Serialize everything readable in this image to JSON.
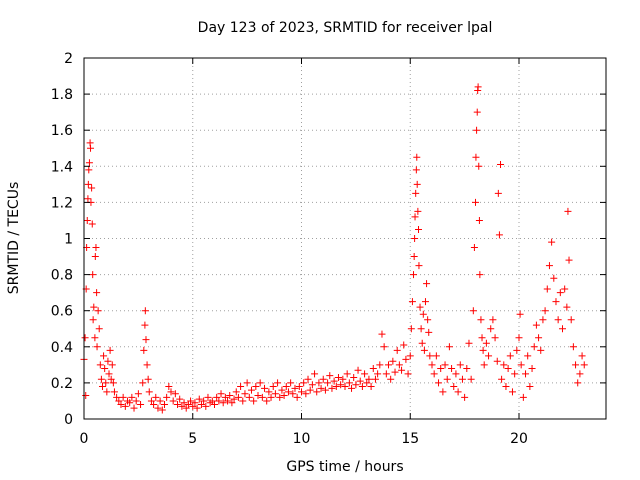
{
  "chart_data": {
    "type": "scatter",
    "title": "Day 123 of 2023, SRMTID for receiver lpal",
    "xlabel": "GPS time / hours",
    "ylabel": "SRMTID / TECUs",
    "xlim": [
      0,
      24
    ],
    "ylim": [
      0,
      2
    ],
    "xticks": [
      0,
      5,
      10,
      15,
      20
    ],
    "yticks": [
      0,
      0.2,
      0.4,
      0.6,
      0.8,
      1,
      1.2,
      1.4,
      1.6,
      1.8,
      2
    ],
    "xtick_labels": [
      "0",
      "5",
      "10",
      "15",
      "20"
    ],
    "ytick_labels": [
      "0",
      "0.2",
      "0.4",
      "0.6",
      "0.8",
      "1",
      "1.2",
      "1.4",
      "1.6",
      "1.8",
      "2"
    ],
    "grid": true,
    "marker": "+",
    "color": "#ff0000",
    "series": [
      {
        "name": "SRMTID",
        "points": [
          [
            0.0,
            0.33
          ],
          [
            0.05,
            0.45
          ],
          [
            0.08,
            0.13
          ],
          [
            0.1,
            0.72
          ],
          [
            0.12,
            0.95
          ],
          [
            0.15,
            1.1
          ],
          [
            0.18,
            1.22
          ],
          [
            0.2,
            1.3
          ],
          [
            0.22,
            1.38
          ],
          [
            0.25,
            1.42
          ],
          [
            0.28,
            1.53
          ],
          [
            0.3,
            1.5
          ],
          [
            0.32,
            1.2
          ],
          [
            0.35,
            1.28
          ],
          [
            0.38,
            1.08
          ],
          [
            0.4,
            0.8
          ],
          [
            0.42,
            0.55
          ],
          [
            0.45,
            0.62
          ],
          [
            0.5,
            0.45
          ],
          [
            0.52,
            0.9
          ],
          [
            0.55,
            0.95
          ],
          [
            0.58,
            0.7
          ],
          [
            0.6,
            0.4
          ],
          [
            0.65,
            0.6
          ],
          [
            0.7,
            0.5
          ],
          [
            0.75,
            0.3
          ],
          [
            0.8,
            0.22
          ],
          [
            0.85,
            0.18
          ],
          [
            0.9,
            0.35
          ],
          [
            0.95,
            0.28
          ],
          [
            1.0,
            0.2
          ],
          [
            1.05,
            0.15
          ],
          [
            1.1,
            0.32
          ],
          [
            1.15,
            0.25
          ],
          [
            1.2,
            0.38
          ],
          [
            1.25,
            0.22
          ],
          [
            1.3,
            0.3
          ],
          [
            1.35,
            0.2
          ],
          [
            1.4,
            0.15
          ],
          [
            1.5,
            0.12
          ],
          [
            1.6,
            0.1
          ],
          [
            1.7,
            0.08
          ],
          [
            1.8,
            0.12
          ],
          [
            1.9,
            0.07
          ],
          [
            2.0,
            0.1
          ],
          [
            2.1,
            0.09
          ],
          [
            2.2,
            0.12
          ],
          [
            2.3,
            0.06
          ],
          [
            2.4,
            0.1
          ],
          [
            2.5,
            0.14
          ],
          [
            2.6,
            0.08
          ],
          [
            2.7,
            0.2
          ],
          [
            2.75,
            0.38
          ],
          [
            2.8,
            0.52
          ],
          [
            2.82,
            0.6
          ],
          [
            2.85,
            0.44
          ],
          [
            2.9,
            0.3
          ],
          [
            2.95,
            0.22
          ],
          [
            3.0,
            0.15
          ],
          [
            3.1,
            0.1
          ],
          [
            3.2,
            0.08
          ],
          [
            3.3,
            0.12
          ],
          [
            3.4,
            0.06
          ],
          [
            3.5,
            0.1
          ],
          [
            3.6,
            0.05
          ],
          [
            3.7,
            0.08
          ],
          [
            3.8,
            0.12
          ],
          [
            3.9,
            0.18
          ],
          [
            4.0,
            0.15
          ],
          [
            4.1,
            0.1
          ],
          [
            4.2,
            0.14
          ],
          [
            4.3,
            0.08
          ],
          [
            4.4,
            0.11
          ],
          [
            4.5,
            0.07
          ],
          [
            4.6,
            0.09
          ],
          [
            4.7,
            0.06
          ],
          [
            4.8,
            0.08
          ],
          [
            4.9,
            0.1
          ],
          [
            5.0,
            0.07
          ],
          [
            5.1,
            0.09
          ],
          [
            5.2,
            0.06
          ],
          [
            5.3,
            0.11
          ],
          [
            5.4,
            0.08
          ],
          [
            5.5,
            0.1
          ],
          [
            5.6,
            0.07
          ],
          [
            5.7,
            0.12
          ],
          [
            5.8,
            0.09
          ],
          [
            5.9,
            0.1
          ],
          [
            6.0,
            0.08
          ],
          [
            6.1,
            0.12
          ],
          [
            6.2,
            0.1
          ],
          [
            6.3,
            0.14
          ],
          [
            6.4,
            0.09
          ],
          [
            6.5,
            0.12
          ],
          [
            6.6,
            0.1
          ],
          [
            6.7,
            0.13
          ],
          [
            6.8,
            0.09
          ],
          [
            6.9,
            0.11
          ],
          [
            7.0,
            0.15
          ],
          [
            7.1,
            0.12
          ],
          [
            7.2,
            0.18
          ],
          [
            7.3,
            0.1
          ],
          [
            7.4,
            0.14
          ],
          [
            7.5,
            0.2
          ],
          [
            7.6,
            0.12
          ],
          [
            7.7,
            0.16
          ],
          [
            7.8,
            0.1
          ],
          [
            7.9,
            0.18
          ],
          [
            8.0,
            0.13
          ],
          [
            8.1,
            0.2
          ],
          [
            8.2,
            0.12
          ],
          [
            8.3,
            0.17
          ],
          [
            8.4,
            0.1
          ],
          [
            8.5,
            0.15
          ],
          [
            8.6,
            0.12
          ],
          [
            8.7,
            0.18
          ],
          [
            8.8,
            0.14
          ],
          [
            8.9,
            0.2
          ],
          [
            9.0,
            0.12
          ],
          [
            9.1,
            0.16
          ],
          [
            9.2,
            0.13
          ],
          [
            9.3,
            0.18
          ],
          [
            9.4,
            0.15
          ],
          [
            9.5,
            0.2
          ],
          [
            9.6,
            0.14
          ],
          [
            9.7,
            0.17
          ],
          [
            9.8,
            0.12
          ],
          [
            9.9,
            0.18
          ],
          [
            10.0,
            0.15
          ],
          [
            10.1,
            0.2
          ],
          [
            10.2,
            0.14
          ],
          [
            10.3,
            0.22
          ],
          [
            10.4,
            0.16
          ],
          [
            10.5,
            0.19
          ],
          [
            10.6,
            0.25
          ],
          [
            10.7,
            0.15
          ],
          [
            10.8,
            0.2
          ],
          [
            10.9,
            0.17
          ],
          [
            11.0,
            0.22
          ],
          [
            11.1,
            0.16
          ],
          [
            11.2,
            0.2
          ],
          [
            11.3,
            0.24
          ],
          [
            11.4,
            0.17
          ],
          [
            11.5,
            0.21
          ],
          [
            11.6,
            0.18
          ],
          [
            11.7,
            0.23
          ],
          [
            11.8,
            0.19
          ],
          [
            11.9,
            0.22
          ],
          [
            12.0,
            0.18
          ],
          [
            12.1,
            0.25
          ],
          [
            12.2,
            0.2
          ],
          [
            12.3,
            0.17
          ],
          [
            12.4,
            0.23
          ],
          [
            12.5,
            0.19
          ],
          [
            12.6,
            0.27
          ],
          [
            12.7,
            0.21
          ],
          [
            12.8,
            0.18
          ],
          [
            12.9,
            0.25
          ],
          [
            13.0,
            0.2
          ],
          [
            13.1,
            0.22
          ],
          [
            13.2,
            0.18
          ],
          [
            13.3,
            0.28
          ],
          [
            13.4,
            0.22
          ],
          [
            13.5,
            0.25
          ],
          [
            13.6,
            0.3
          ],
          [
            13.7,
            0.47
          ],
          [
            13.8,
            0.4
          ],
          [
            13.9,
            0.25
          ],
          [
            14.0,
            0.3
          ],
          [
            14.1,
            0.22
          ],
          [
            14.2,
            0.32
          ],
          [
            14.3,
            0.26
          ],
          [
            14.4,
            0.38
          ],
          [
            14.5,
            0.3
          ],
          [
            14.6,
            0.27
          ],
          [
            14.7,
            0.41
          ],
          [
            14.8,
            0.33
          ],
          [
            14.9,
            0.25
          ],
          [
            15.0,
            0.35
          ],
          [
            15.05,
            0.5
          ],
          [
            15.1,
            0.65
          ],
          [
            15.15,
            0.8
          ],
          [
            15.18,
            0.9
          ],
          [
            15.2,
            1.0
          ],
          [
            15.22,
            1.12
          ],
          [
            15.25,
            1.25
          ],
          [
            15.28,
            1.38
          ],
          [
            15.3,
            1.45
          ],
          [
            15.32,
            1.3
          ],
          [
            15.35,
            1.15
          ],
          [
            15.38,
            1.05
          ],
          [
            15.4,
            0.85
          ],
          [
            15.45,
            0.62
          ],
          [
            15.5,
            0.5
          ],
          [
            15.55,
            0.42
          ],
          [
            15.6,
            0.58
          ],
          [
            15.65,
            0.38
          ],
          [
            15.7,
            0.65
          ],
          [
            15.75,
            0.75
          ],
          [
            15.8,
            0.55
          ],
          [
            15.85,
            0.48
          ],
          [
            15.9,
            0.35
          ],
          [
            16.0,
            0.3
          ],
          [
            16.1,
            0.25
          ],
          [
            16.2,
            0.35
          ],
          [
            16.3,
            0.2
          ],
          [
            16.4,
            0.28
          ],
          [
            16.5,
            0.15
          ],
          [
            16.6,
            0.3
          ],
          [
            16.7,
            0.22
          ],
          [
            16.8,
            0.4
          ],
          [
            16.9,
            0.28
          ],
          [
            17.0,
            0.18
          ],
          [
            17.1,
            0.25
          ],
          [
            17.2,
            0.15
          ],
          [
            17.3,
            0.3
          ],
          [
            17.4,
            0.22
          ],
          [
            17.5,
            0.12
          ],
          [
            17.6,
            0.28
          ],
          [
            17.7,
            0.42
          ],
          [
            17.8,
            0.22
          ],
          [
            17.9,
            0.6
          ],
          [
            17.95,
            0.95
          ],
          [
            18.0,
            1.2
          ],
          [
            18.02,
            1.45
          ],
          [
            18.05,
            1.6
          ],
          [
            18.08,
            1.7
          ],
          [
            18.1,
            1.82
          ],
          [
            18.12,
            1.84
          ],
          [
            18.15,
            1.4
          ],
          [
            18.18,
            1.1
          ],
          [
            18.2,
            0.8
          ],
          [
            18.25,
            0.55
          ],
          [
            18.3,
            0.45
          ],
          [
            18.35,
            0.38
          ],
          [
            18.4,
            0.3
          ],
          [
            18.5,
            0.42
          ],
          [
            18.6,
            0.35
          ],
          [
            18.7,
            0.5
          ],
          [
            18.8,
            0.55
          ],
          [
            18.9,
            0.45
          ],
          [
            19.0,
            0.32
          ],
          [
            19.05,
            1.25
          ],
          [
            19.1,
            1.02
          ],
          [
            19.15,
            1.41
          ],
          [
            19.2,
            0.22
          ],
          [
            19.3,
            0.3
          ],
          [
            19.4,
            0.18
          ],
          [
            19.5,
            0.28
          ],
          [
            19.6,
            0.35
          ],
          [
            19.7,
            0.15
          ],
          [
            19.8,
            0.25
          ],
          [
            19.9,
            0.38
          ],
          [
            20.0,
            0.45
          ],
          [
            20.05,
            0.58
          ],
          [
            20.1,
            0.3
          ],
          [
            20.2,
            0.12
          ],
          [
            20.3,
            0.25
          ],
          [
            20.4,
            0.35
          ],
          [
            20.5,
            0.18
          ],
          [
            20.6,
            0.28
          ],
          [
            20.7,
            0.4
          ],
          [
            20.8,
            0.52
          ],
          [
            20.9,
            0.45
          ],
          [
            21.0,
            0.38
          ],
          [
            21.1,
            0.55
          ],
          [
            21.2,
            0.6
          ],
          [
            21.3,
            0.72
          ],
          [
            21.4,
            0.85
          ],
          [
            21.5,
            0.98
          ],
          [
            21.6,
            0.78
          ],
          [
            21.7,
            0.65
          ],
          [
            21.8,
            0.55
          ],
          [
            21.9,
            0.7
          ],
          [
            22.0,
            0.5
          ],
          [
            22.1,
            0.72
          ],
          [
            22.2,
            0.62
          ],
          [
            22.25,
            1.15
          ],
          [
            22.3,
            0.88
          ],
          [
            22.4,
            0.55
          ],
          [
            22.5,
            0.4
          ],
          [
            22.6,
            0.3
          ],
          [
            22.7,
            0.2
          ],
          [
            22.8,
            0.25
          ],
          [
            22.9,
            0.35
          ],
          [
            23.0,
            0.3
          ]
        ]
      }
    ]
  }
}
